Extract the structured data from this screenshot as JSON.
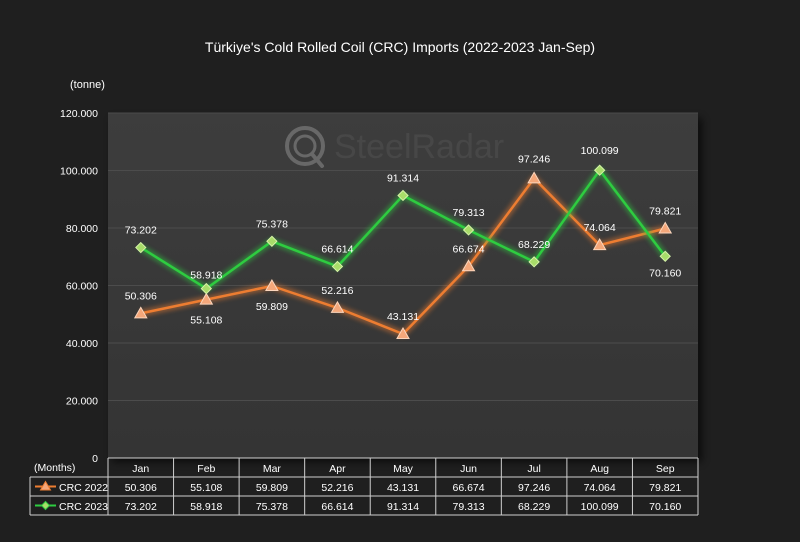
{
  "chart_data": {
    "type": "line",
    "title": "Türkiye's Cold Rolled Coil (CRC) Imports (2022-2023 Jan-Sep)",
    "ylabel": "(tonne)",
    "xlabel": "(Months)",
    "ylim": [
      0,
      120000
    ],
    "yticks": [
      "0",
      "20.000",
      "40.000",
      "60.000",
      "80.000",
      "100.000",
      "120.000"
    ],
    "ytick_values": [
      0,
      20000,
      40000,
      60000,
      80000,
      100000,
      120000
    ],
    "grid": true,
    "categories": [
      "Jan",
      "Feb",
      "Mar",
      "Apr",
      "May",
      "Jun",
      "Jul",
      "Aug",
      "Sep"
    ],
    "series": [
      {
        "name": "CRC 2022",
        "marker": "triangle",
        "color": "#ed7d31",
        "values": [
          50306,
          55108,
          59809,
          52216,
          43131,
          66674,
          97246,
          74064,
          79821
        ],
        "labels": [
          "50.306",
          "55.108",
          "59.809",
          "52.216",
          "43.131",
          "66.674",
          "97.246",
          "74.064",
          "79.821"
        ]
      },
      {
        "name": "CRC 2023",
        "marker": "diamond",
        "color": "#2ecc40",
        "values": [
          73202,
          58918,
          75378,
          66614,
          91314,
          79313,
          68229,
          100099,
          70160
        ],
        "labels": [
          "73.202",
          "58.918",
          "75.378",
          "66.614",
          "91.314",
          "79.313",
          "68.229",
          "100.099",
          "70.160"
        ]
      }
    ],
    "data_table": true
  },
  "watermark": "SteelRadar"
}
